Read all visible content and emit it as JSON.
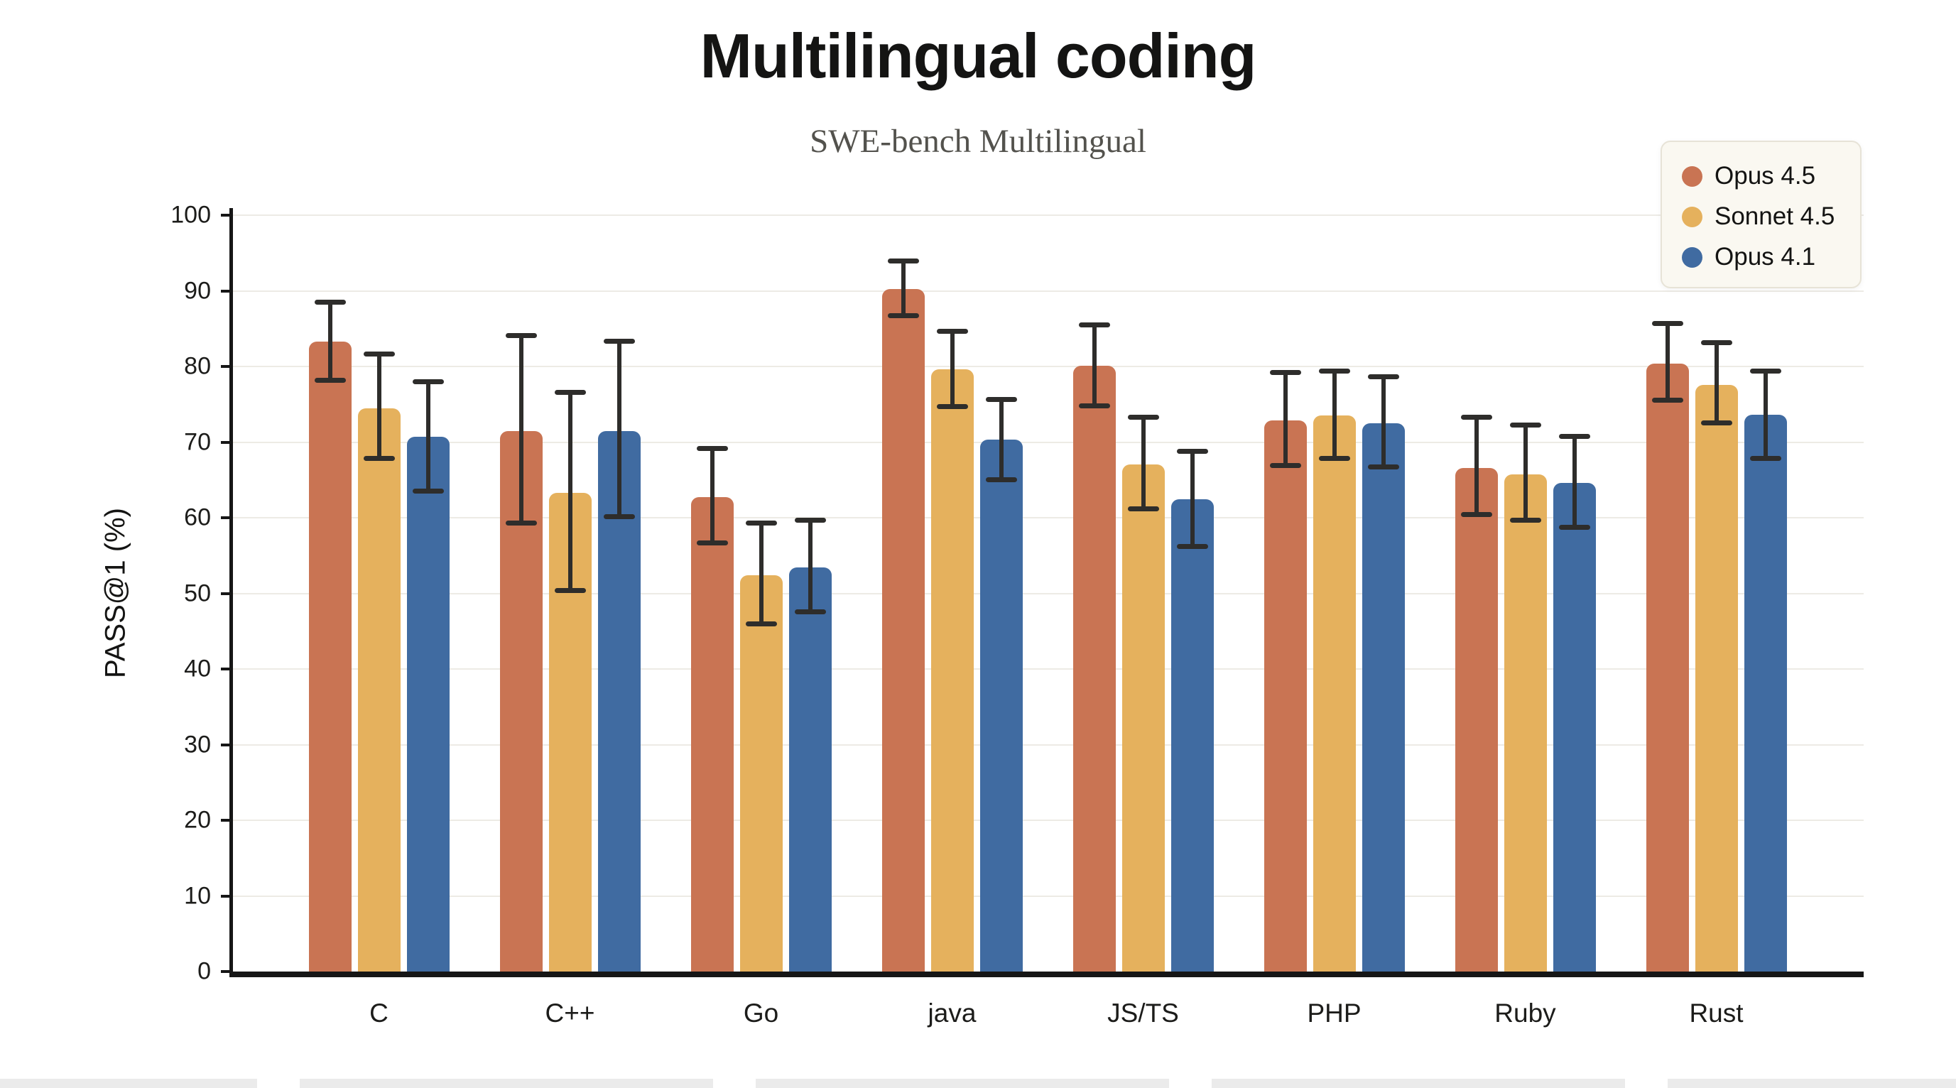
{
  "title": "Multilingual coding",
  "subtitle": "SWE-bench Multilingual",
  "ylabel": "PASS@1 (%)",
  "chart_data": {
    "type": "bar",
    "title": "Multilingual coding",
    "subtitle": "SWE-bench Multilingual",
    "xlabel": "",
    "ylabel": "PASS@1 (%)",
    "ylim": [
      0,
      100
    ],
    "yticks": [
      0,
      10,
      20,
      30,
      40,
      50,
      60,
      70,
      80,
      90,
      100
    ],
    "grid": true,
    "legend_position": "top-right",
    "categories": [
      "C",
      "C++",
      "Go",
      "java",
      "JS/TS",
      "PHP",
      "Ruby",
      "Rust"
    ],
    "series": [
      {
        "name": "Opus 4.5",
        "color": "#c97453",
        "values": [
          83.3,
          71.5,
          62.7,
          90.2,
          80.1,
          72.9,
          66.6,
          80.4
        ],
        "err_low": [
          77.8,
          59.0,
          56.3,
          86.4,
          74.5,
          66.6,
          60.1,
          75.2
        ],
        "err_high": [
          88.8,
          84.4,
          69.5,
          94.3,
          85.8,
          79.5,
          73.6,
          86.0
        ]
      },
      {
        "name": "Sonnet 4.5",
        "color": "#e5b15d",
        "values": [
          74.5,
          63.3,
          52.4,
          79.6,
          67.0,
          73.5,
          65.7,
          77.6
        ],
        "err_low": [
          67.5,
          50.0,
          45.6,
          74.4,
          60.8,
          67.5,
          59.3,
          72.2
        ],
        "err_high": [
          82.0,
          76.9,
          59.6,
          85.0,
          73.6,
          79.7,
          72.6,
          83.5
        ]
      },
      {
        "name": "Opus 4.1",
        "color": "#406ba1",
        "values": [
          70.7,
          71.5,
          53.4,
          70.3,
          62.4,
          72.5,
          64.6,
          73.6
        ],
        "err_low": [
          63.2,
          59.8,
          47.2,
          64.7,
          55.9,
          66.4,
          58.4,
          67.5
        ],
        "err_high": [
          78.3,
          83.7,
          60.0,
          76.0,
          69.1,
          79.0,
          71.1,
          79.7
        ]
      }
    ]
  },
  "colors": {
    "grid": "#edebe5",
    "axis": "#161616",
    "error_bar": "#2e2d2b",
    "legend_bg": "#faf8f1",
    "legend_border": "#e7e3d7",
    "subtitle_text": "#53524d",
    "title_text": "#141413"
  }
}
